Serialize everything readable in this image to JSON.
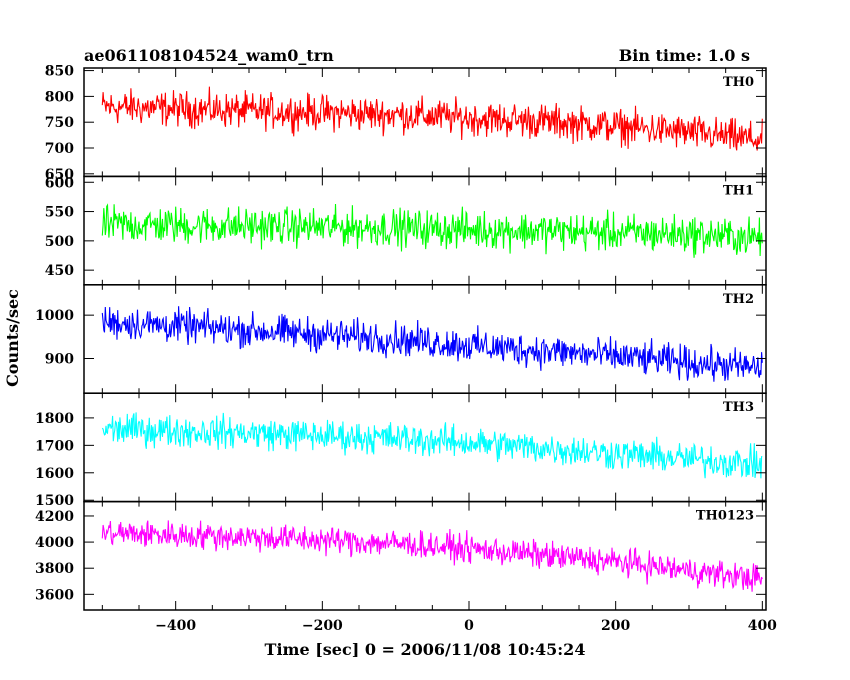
{
  "header": {
    "title": "ae061108104524_wam0_trn",
    "bin_time": "Bin time: 1.0 s"
  },
  "chart_data": {
    "type": "line",
    "title": "ae061108104524_wam0_trn",
    "subtitle": "Bin time: 1.0 s",
    "xlabel": "Time [sec] 0 = 2006/11/08 10:45:24",
    "ylabel": "Counts/sec",
    "xlim": [
      -525,
      405
    ],
    "x_ticks": [
      -400,
      -200,
      0,
      200,
      400
    ],
    "x_range_data": [
      -500,
      400
    ],
    "grid": false,
    "panels": [
      {
        "name": "TH0",
        "color": "#ff0000",
        "ylim": [
          645,
          855
        ],
        "y_ticks": [
          650,
          700,
          750,
          800,
          850
        ],
        "trend": {
          "x": [
            -500,
            -300,
            -100,
            0,
            100,
            200,
            300,
            400
          ],
          "y": [
            780,
            772,
            765,
            758,
            752,
            742,
            730,
            715
          ]
        },
        "noise_amplitude": 35
      },
      {
        "name": "TH1",
        "color": "#00ff00",
        "ylim": [
          425,
          610
        ],
        "y_ticks": [
          450,
          500,
          550,
          600
        ],
        "trend": {
          "x": [
            -500,
            -300,
            -100,
            0,
            100,
            200,
            300,
            400
          ],
          "y": [
            528,
            525,
            522,
            519,
            517,
            514,
            511,
            505
          ]
        },
        "noise_amplitude": 33
      },
      {
        "name": "TH2",
        "color": "#0000ff",
        "ylim": [
          820,
          1070
        ],
        "y_ticks": [
          900,
          1000
        ],
        "trend": {
          "x": [
            -500,
            -300,
            -100,
            0,
            100,
            200,
            300,
            400
          ],
          "y": [
            985,
            965,
            945,
            930,
            918,
            905,
            890,
            878
          ]
        },
        "noise_amplitude": 40
      },
      {
        "name": "TH3",
        "color": "#00ffff",
        "ylim": [
          1495,
          1890
        ],
        "y_ticks": [
          1500,
          1600,
          1700,
          1800
        ],
        "trend": {
          "x": [
            -500,
            -300,
            -100,
            0,
            100,
            200,
            300,
            400
          ],
          "y": [
            1760,
            1745,
            1725,
            1710,
            1690,
            1670,
            1650,
            1630
          ]
        },
        "noise_amplitude": 60
      },
      {
        "name": "TH0123",
        "color": "#ff00ff",
        "ylim": [
          3480,
          4310
        ],
        "y_ticks": [
          3600,
          3800,
          4000,
          4200
        ],
        "trend": {
          "x": [
            -500,
            -300,
            -100,
            0,
            100,
            200,
            300,
            400
          ],
          "y": [
            4070,
            4040,
            3990,
            3950,
            3900,
            3850,
            3780,
            3720
          ]
        },
        "noise_amplitude": 110
      }
    ]
  }
}
